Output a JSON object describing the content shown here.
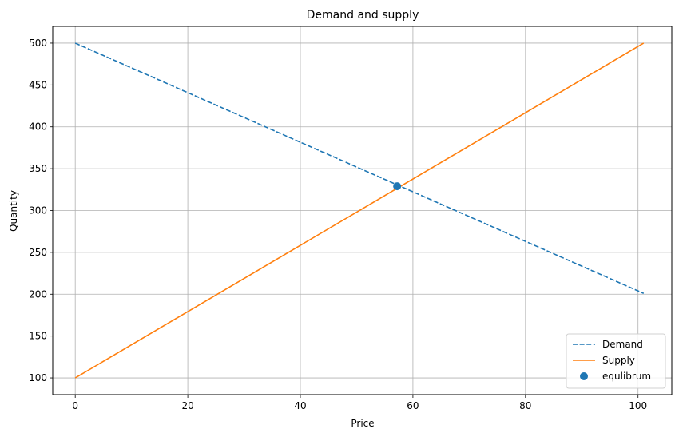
{
  "chart_data": {
    "type": "line",
    "title": "Demand and supply",
    "xlabel": "Price",
    "ylabel": "Quantity",
    "xlim": [
      -4,
      106
    ],
    "ylim": [
      80,
      520
    ],
    "x_ticks": [
      0,
      20,
      40,
      60,
      80,
      100
    ],
    "y_ticks": [
      100,
      150,
      200,
      250,
      300,
      350,
      400,
      450,
      500
    ],
    "grid": true,
    "legend_position": "bottom-right",
    "series": [
      {
        "name": "Demand",
        "style": "dashed",
        "color": "#1f77b4",
        "x": [
          0,
          101
        ],
        "y": [
          500,
          201
        ]
      },
      {
        "name": "Supply",
        "style": "solid",
        "color": "#ff7f0e",
        "x": [
          0,
          101
        ],
        "y": [
          100,
          500
        ]
      }
    ],
    "points": [
      {
        "name": "equlibrum",
        "color": "#1f77b4",
        "x": 57.2,
        "y": 329
      }
    ]
  }
}
